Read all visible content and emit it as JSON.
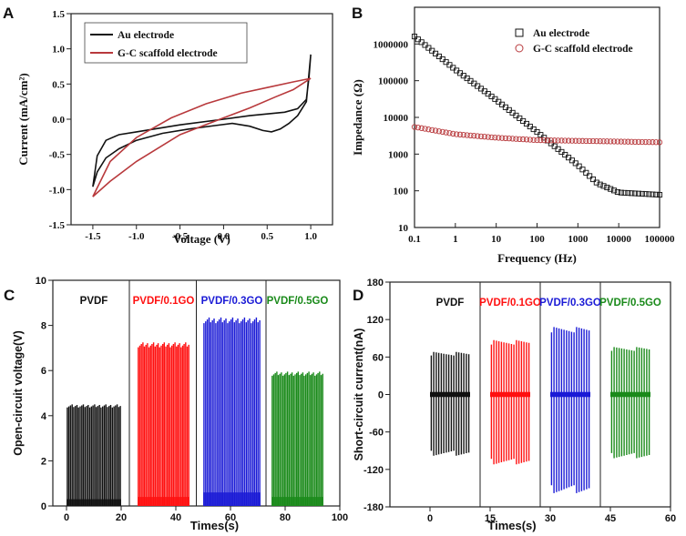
{
  "colors": {
    "black": "#111111",
    "red": "#b8393c",
    "red_bright": "#ff1010",
    "blue": "#1a1ad6",
    "green": "#1a8a1a"
  },
  "chart_data": [
    {
      "panel": "A",
      "type": "line",
      "xlabel": "Voltage (V)",
      "ylabel": "Current (mA/cm²)",
      "xlim": [
        -1.75,
        1.25
      ],
      "ylim": [
        -1.5,
        1.5
      ],
      "xticks": [
        "-1.5",
        "-1.0",
        "-0.5",
        "0.0",
        "0.5",
        "1.0"
      ],
      "yticks": [
        "-1.5",
        "-1.0",
        "-0.5",
        "0.0",
        "0.5",
        "1.0",
        "1.5"
      ],
      "legend": [
        "Au electrode",
        "G-C scaffold electrode"
      ],
      "series": [
        {
          "name": "Au electrode",
          "color": "#111111",
          "points": [
            [
              1.0,
              0.92
            ],
            [
              0.98,
              0.6
            ],
            [
              0.95,
              0.28
            ],
            [
              0.85,
              0.15
            ],
            [
              0.7,
              0.1
            ],
            [
              0.3,
              0.05
            ],
            [
              0.0,
              0.0
            ],
            [
              -0.5,
              -0.08
            ],
            [
              -1.0,
              -0.18
            ],
            [
              -1.2,
              -0.22
            ],
            [
              -1.35,
              -0.3
            ],
            [
              -1.45,
              -0.52
            ],
            [
              -1.5,
              -0.96
            ],
            [
              -1.45,
              -0.75
            ],
            [
              -1.35,
              -0.55
            ],
            [
              -1.2,
              -0.42
            ],
            [
              -1.0,
              -0.3
            ],
            [
              -0.7,
              -0.2
            ],
            [
              -0.4,
              -0.14
            ],
            [
              -0.1,
              -0.09
            ],
            [
              0.1,
              -0.06
            ],
            [
              0.3,
              -0.1
            ],
            [
              0.45,
              -0.16
            ],
            [
              0.55,
              -0.18
            ],
            [
              0.65,
              -0.14
            ],
            [
              0.75,
              -0.06
            ],
            [
              0.85,
              0.05
            ],
            [
              0.95,
              0.25
            ],
            [
              1.0,
              0.92
            ]
          ]
        },
        {
          "name": "G-C scaffold electrode",
          "color": "#b8393c",
          "points": [
            [
              1.0,
              0.58
            ],
            [
              0.8,
              0.53
            ],
            [
              0.5,
              0.45
            ],
            [
              0.2,
              0.37
            ],
            [
              -0.2,
              0.22
            ],
            [
              -0.6,
              0.02
            ],
            [
              -1.0,
              -0.26
            ],
            [
              -1.3,
              -0.6
            ],
            [
              -1.5,
              -1.1
            ],
            [
              -1.3,
              -0.88
            ],
            [
              -1.0,
              -0.6
            ],
            [
              -0.5,
              -0.22
            ],
            [
              0.0,
              0.02
            ],
            [
              0.3,
              0.16
            ],
            [
              0.6,
              0.32
            ],
            [
              0.8,
              0.42
            ],
            [
              1.0,
              0.58
            ]
          ]
        }
      ]
    },
    {
      "panel": "B",
      "type": "scatter",
      "xlabel": "Frequency (Hz)",
      "ylabel": "Impedance (Ω)",
      "xscale": "log",
      "yscale": "log",
      "xlim": [
        0.1,
        100000
      ],
      "ylim": [
        10,
        10000000
      ],
      "xticks": [
        "0.1",
        "1",
        "10",
        "100",
        "1000",
        "10000",
        "100000"
      ],
      "yticks": [
        "10",
        "100",
        "1000",
        "10000",
        "100000",
        "1000000"
      ],
      "legend": [
        "Au electrode",
        "G-C scaffold electrode"
      ],
      "series": [
        {
          "name": "Au electrode",
          "marker": "open-square",
          "color": "#111111",
          "points": [
            [
              0.1,
              1600000
            ],
            [
              1,
              200000
            ],
            [
              10,
              30000
            ],
            [
              100,
              4000
            ],
            [
              1000,
              500
            ],
            [
              3000,
              160
            ],
            [
              10000,
              90
            ],
            [
              100000,
              78
            ]
          ]
        },
        {
          "name": "G-C scaffold electrode",
          "marker": "open-circle",
          "color": "#b8393c",
          "points": [
            [
              0.1,
              5500
            ],
            [
              1,
              3500
            ],
            [
              10,
              2800
            ],
            [
              100,
              2400
            ],
            [
              1000,
              2300
            ],
            [
              10000,
              2200
            ],
            [
              100000,
              2100
            ]
          ]
        }
      ]
    },
    {
      "panel": "C",
      "type": "line",
      "xlabel": "Times(s)",
      "ylabel": "Open-circuit voltage(V)",
      "xlim": [
        -5,
        100
      ],
      "ylim": [
        0,
        10
      ],
      "xticks": [
        "0",
        "20",
        "40",
        "60",
        "80",
        "100"
      ],
      "yticks": [
        "0",
        "2",
        "4",
        "6",
        "8",
        "10"
      ],
      "segments": [
        {
          "label": "PVDF",
          "color": "#111111",
          "t_start": 0,
          "t_end": 20,
          "peak": 4.5,
          "base_noise": 0.3,
          "pulses": 34
        },
        {
          "label": "PVDF/0.1GO",
          "color": "#ff1010",
          "t_start": 26,
          "t_end": 45,
          "peak": 7.25,
          "base_noise": 0.4,
          "pulses": 34
        },
        {
          "label": "PVDF/0.3GO",
          "color": "#1a1ad6",
          "t_start": 50,
          "t_end": 71,
          "peak": 8.35,
          "base_noise": 0.6,
          "pulses": 34
        },
        {
          "label": "PVDF/0.5GO",
          "color": "#1a8a1a",
          "t_start": 75,
          "t_end": 94,
          "peak": 5.95,
          "base_noise": 0.4,
          "pulses": 34
        }
      ]
    },
    {
      "panel": "D",
      "type": "line",
      "xlabel": "Times(s)",
      "ylabel": "Short-circuit current(nA)",
      "xlim": [
        -10,
        60
      ],
      "ylim": [
        -180,
        180
      ],
      "xticks": [
        "0",
        "15",
        "30",
        "45",
        "60"
      ],
      "yticks": [
        "-180",
        "-120",
        "-60",
        "0",
        "60",
        "120",
        "180"
      ],
      "segments": [
        {
          "label": "PVDF",
          "color": "#111111",
          "t_start": 0,
          "t_end": 10,
          "pos": 68,
          "neg": -98,
          "pulses": 16
        },
        {
          "label": "PVDF/0.1GO",
          "color": "#ff1010",
          "t_start": 15,
          "t_end": 25,
          "pos": 87,
          "neg": -112,
          "pulses": 16
        },
        {
          "label": "PVDF/0.3GO",
          "color": "#1a1ad6",
          "t_start": 30,
          "t_end": 40,
          "pos": 108,
          "neg": -158,
          "pulses": 16
        },
        {
          "label": "PVDF/0.5GO",
          "color": "#1a8a1a",
          "t_start": 45,
          "t_end": 55,
          "pos": 76,
          "neg": -102,
          "pulses": 16
        }
      ]
    }
  ]
}
